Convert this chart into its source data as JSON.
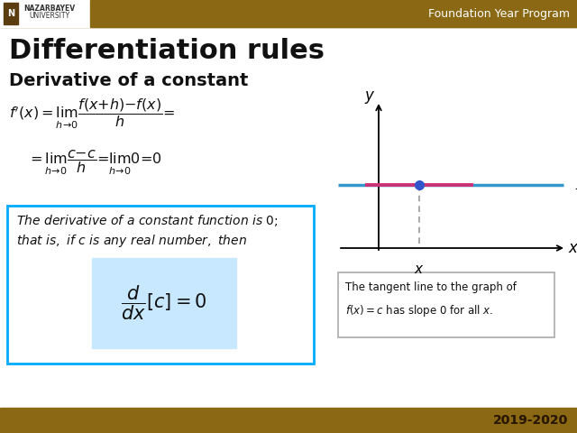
{
  "title": "Differentiation rules",
  "subtitle": "Derivative of a constant",
  "header_text": "Foundation Year Program",
  "header_bg": "#8B6914",
  "header_text_color": "#ffffff",
  "bg_color": "#ffffff",
  "year": "2019-2020",
  "year_color": "#5c4000",
  "box_border": "#00aaff",
  "box_formula_bg": "#c8e8ff",
  "tangent_box_border": "#aaaaaa",
  "graph_line_color": "#3399cc",
  "tangent_color": "#cc3377",
  "point_color": "#3355cc",
  "dashed_color": "#999999",
  "footer_bg": "#8B6914",
  "logo_bg": "#5c3d10",
  "logo_stripe": "#8B6914"
}
